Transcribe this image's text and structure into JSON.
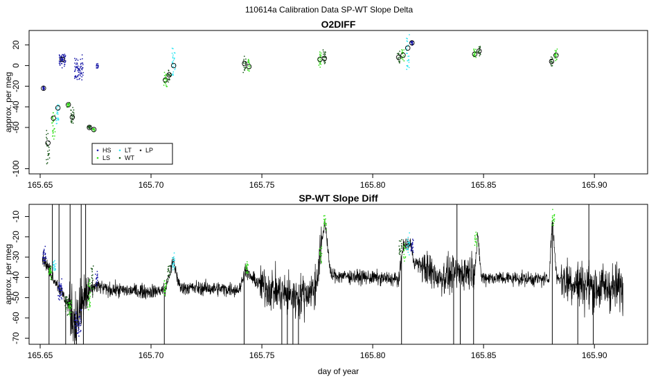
{
  "title": "110614a   Calibration Data SP-WT Slope Delta",
  "colors": {
    "HS": "#1a1aa8",
    "LS": "#39e01f",
    "LT": "#33e6f2",
    "WT": "#1e5a1e",
    "LP": "#2d2d2d",
    "trace": "#000000",
    "frame": "#000000"
  },
  "chart_data": [
    {
      "type": "scatter",
      "title": "O2DIFF",
      "xlabel": "",
      "ylabel": "approx. per meg",
      "xlim": [
        165.645,
        165.924
      ],
      "ylim": [
        -105,
        34
      ],
      "xticks": [
        165.65,
        165.7,
        165.75,
        165.8,
        165.85,
        165.9
      ],
      "xtick_labels": [
        "165.65",
        "165.70",
        "165.75",
        "165.80",
        "165.85",
        "165.90"
      ],
      "yticks": [
        -100,
        -60,
        -40,
        -20,
        0,
        20
      ],
      "ytick_labels": [
        "-100",
        "-60",
        "-40",
        "-20",
        "0",
        "20"
      ],
      "legend": {
        "position": "bottom-left",
        "entries": [
          {
            "label": "HS",
            "color": "HS"
          },
          {
            "label": "LT",
            "color": "LT"
          },
          {
            "label": "LP",
            "color": "LP"
          },
          {
            "label": "LS",
            "color": "LS"
          },
          {
            "label": "WT",
            "color": "WT"
          }
        ]
      },
      "clusters": [
        {
          "series": "HS",
          "x": 165.6515,
          "x_spread": 0.0008,
          "y_from": -22,
          "y_to": -22,
          "y_noise": 2,
          "n": 25
        },
        {
          "series": "WT",
          "x": 165.6535,
          "x_spread": 0.0015,
          "y_from": -95,
          "y_to": -65,
          "y_noise": 5,
          "n": 25
        },
        {
          "series": "LS",
          "x": 165.656,
          "x_spread": 0.0015,
          "y_from": -70,
          "y_to": -45,
          "y_noise": 5,
          "n": 25
        },
        {
          "series": "LT",
          "x": 165.658,
          "x_spread": 0.0015,
          "y_from": -55,
          "y_to": -38,
          "y_noise": 4,
          "n": 22
        },
        {
          "series": "HS",
          "x": 165.66,
          "x_spread": 0.003,
          "y_from": 8,
          "y_to": 2,
          "y_noise": 6,
          "n": 60
        },
        {
          "series": "LS",
          "x": 165.6627,
          "x_spread": 0.0012,
          "y_from": -38,
          "y_to": -38,
          "y_noise": 3,
          "n": 18
        },
        {
          "series": "WT",
          "x": 165.6645,
          "x_spread": 0.0015,
          "y_from": -42,
          "y_to": -56,
          "y_noise": 4,
          "n": 22
        },
        {
          "series": "HS",
          "x": 165.6675,
          "x_spread": 0.004,
          "y_from": 4,
          "y_to": -12,
          "y_noise": 8,
          "n": 70
        },
        {
          "series": "WT",
          "x": 165.6722,
          "x_spread": 0.0015,
          "y_from": -60,
          "y_to": -60,
          "y_noise": 3,
          "n": 20
        },
        {
          "series": "LS",
          "x": 165.6742,
          "x_spread": 0.0012,
          "y_from": -62,
          "y_to": -62,
          "y_noise": 3,
          "n": 16
        },
        {
          "series": "HS",
          "x": 165.6757,
          "x_spread": 0.001,
          "y_from": 0,
          "y_to": 0,
          "y_noise": 4,
          "n": 16
        },
        {
          "series": "LS",
          "x": 165.7065,
          "x_spread": 0.0015,
          "y_from": -20,
          "y_to": -8,
          "y_noise": 4,
          "n": 22
        },
        {
          "series": "WT",
          "x": 165.7082,
          "x_spread": 0.0012,
          "y_from": -15,
          "y_to": -5,
          "y_noise": 4,
          "n": 20
        },
        {
          "series": "LT",
          "x": 165.7102,
          "x_spread": 0.0015,
          "y_from": -10,
          "y_to": 15,
          "y_noise": 5,
          "n": 25
        },
        {
          "series": "WT",
          "x": 165.7422,
          "x_spread": 0.0012,
          "y_from": -5,
          "y_to": 8,
          "y_noise": 3,
          "n": 20
        },
        {
          "series": "LS",
          "x": 165.7442,
          "x_spread": 0.0012,
          "y_from": -5,
          "y_to": 5,
          "y_noise": 3,
          "n": 18
        },
        {
          "series": "LS",
          "x": 165.7762,
          "x_spread": 0.0012,
          "y_from": 0,
          "y_to": 12,
          "y_noise": 3,
          "n": 20
        },
        {
          "series": "WT",
          "x": 165.7782,
          "x_spread": 0.0012,
          "y_from": 2,
          "y_to": 14,
          "y_noise": 3,
          "n": 20
        },
        {
          "series": "WT",
          "x": 165.8117,
          "x_spread": 0.0012,
          "y_from": 2,
          "y_to": 14,
          "y_noise": 3,
          "n": 18
        },
        {
          "series": "LS",
          "x": 165.8137,
          "x_spread": 0.0012,
          "y_from": 5,
          "y_to": 16,
          "y_noise": 3,
          "n": 18
        },
        {
          "series": "LT",
          "x": 165.8158,
          "x_spread": 0.0015,
          "y_from": -5,
          "y_to": 28,
          "y_noise": 4,
          "n": 25
        },
        {
          "series": "HS",
          "x": 165.8177,
          "x_spread": 0.001,
          "y_from": 20,
          "y_to": 23,
          "y_noise": 2,
          "n": 18
        },
        {
          "series": "LS",
          "x": 165.846,
          "x_spread": 0.0012,
          "y_from": 8,
          "y_to": 16,
          "y_noise": 3,
          "n": 18
        },
        {
          "series": "WT",
          "x": 165.848,
          "x_spread": 0.0012,
          "y_from": 10,
          "y_to": 18,
          "y_noise": 3,
          "n": 18
        },
        {
          "series": "WT",
          "x": 165.8807,
          "x_spread": 0.0012,
          "y_from": 0,
          "y_to": 8,
          "y_noise": 3,
          "n": 18
        },
        {
          "series": "LS",
          "x": 165.8827,
          "x_spread": 0.0012,
          "y_from": 6,
          "y_to": 16,
          "y_noise": 3,
          "n": 18
        }
      ],
      "circle_markers": [
        {
          "x": 165.6515,
          "y": -22
        },
        {
          "x": 165.6535,
          "y": -75
        },
        {
          "x": 165.656,
          "y": -51
        },
        {
          "x": 165.658,
          "y": -41
        },
        {
          "x": 165.66,
          "y": 6
        },
        {
          "x": 165.6627,
          "y": -38
        },
        {
          "x": 165.6645,
          "y": -50
        },
        {
          "x": 165.6722,
          "y": -60
        },
        {
          "x": 165.6742,
          "y": -62
        },
        {
          "x": 165.7065,
          "y": -14
        },
        {
          "x": 165.7082,
          "y": -9
        },
        {
          "x": 165.7102,
          "y": 0
        },
        {
          "x": 165.7422,
          "y": 2
        },
        {
          "x": 165.7442,
          "y": -1
        },
        {
          "x": 165.7762,
          "y": 6
        },
        {
          "x": 165.7782,
          "y": 7
        },
        {
          "x": 165.8117,
          "y": 8
        },
        {
          "x": 165.8137,
          "y": 10
        },
        {
          "x": 165.8158,
          "y": 17
        },
        {
          "x": 165.8177,
          "y": 22
        },
        {
          "x": 165.846,
          "y": 11
        },
        {
          "x": 165.848,
          "y": 14
        },
        {
          "x": 165.8807,
          "y": 4
        },
        {
          "x": 165.8827,
          "y": 10
        }
      ]
    },
    {
      "type": "line",
      "title": "SP-WT Slope Diff",
      "xlabel": "day of year",
      "ylabel": "approx. per meg",
      "xlim": [
        165.645,
        165.924
      ],
      "ylim": [
        -73,
        -4
      ],
      "xticks": [
        165.65,
        165.7,
        165.75,
        165.8,
        165.85,
        165.9
      ],
      "xtick_labels": [
        "165.65",
        "165.70",
        "165.75",
        "165.80",
        "165.85",
        "165.90"
      ],
      "yticks": [
        -70,
        -60,
        -50,
        -40,
        -30,
        -20,
        -10
      ],
      "ytick_labels": [
        "-70",
        "-60",
        "-50",
        "-40",
        "-30",
        "-20",
        "-10"
      ],
      "trace": {
        "x_start": 165.651,
        "x_end": 165.913,
        "samples": 2600,
        "levels": [
          [
            165.651,
            -30
          ],
          [
            165.66,
            -48
          ],
          [
            165.6665,
            -62
          ],
          [
            165.67,
            -50
          ],
          [
            165.675,
            -44
          ],
          [
            165.68,
            -46
          ],
          [
            165.7,
            -47
          ],
          [
            165.7065,
            -46
          ],
          [
            165.71,
            -32
          ],
          [
            165.713,
            -45
          ],
          [
            165.74,
            -46
          ],
          [
            165.7425,
            -36
          ],
          [
            165.745,
            -40
          ],
          [
            165.75,
            -44
          ],
          [
            165.765,
            -50
          ],
          [
            165.774,
            -46
          ],
          [
            165.7785,
            -12
          ],
          [
            165.781,
            -39
          ],
          [
            165.812,
            -41
          ],
          [
            165.8135,
            -25
          ],
          [
            165.817,
            -23
          ],
          [
            165.8185,
            -32
          ],
          [
            165.83,
            -40
          ],
          [
            165.846,
            -36
          ],
          [
            165.8475,
            -20
          ],
          [
            165.849,
            -40
          ],
          [
            165.8795,
            -41
          ],
          [
            165.881,
            -12
          ],
          [
            165.883,
            -40
          ],
          [
            165.9,
            -45
          ],
          [
            165.913,
            -45
          ]
        ],
        "noisy_ranges": [
          [
            165.663,
            165.672,
            10
          ],
          [
            165.749,
            165.777,
            7
          ],
          [
            165.822,
            165.846,
            6
          ],
          [
            165.885,
            165.913,
            8
          ]
        ],
        "spikes": [
          [
            165.654,
            -73
          ],
          [
            165.6555,
            -4
          ],
          [
            165.6585,
            -4
          ],
          [
            165.6615,
            -73
          ],
          [
            165.6635,
            -4
          ],
          [
            165.6655,
            -73
          ],
          [
            165.6685,
            -4
          ],
          [
            165.6695,
            -73
          ],
          [
            165.6705,
            -4
          ],
          [
            165.706,
            -73
          ],
          [
            165.742,
            -73
          ],
          [
            165.759,
            -73
          ],
          [
            165.7615,
            -73
          ],
          [
            165.764,
            -73
          ],
          [
            165.7665,
            -73
          ],
          [
            165.813,
            -73
          ],
          [
            165.8365,
            -73
          ],
          [
            165.838,
            -4
          ],
          [
            165.8395,
            -73
          ],
          [
            165.8455,
            -73
          ],
          [
            165.881,
            -73
          ],
          [
            165.8925,
            -73
          ],
          [
            165.8975,
            -4
          ],
          [
            165.8995,
            -73
          ]
        ]
      },
      "overlay_clusters": [
        {
          "series": "HS",
          "x": 165.652,
          "x_spread": 0.0015,
          "y_from": -26,
          "y_to": -32,
          "y_noise": 3,
          "n": 25
        },
        {
          "series": "LS",
          "x": 165.6545,
          "x_spread": 0.0012,
          "y_from": -35,
          "y_to": -40,
          "y_noise": 3,
          "n": 20
        },
        {
          "series": "LT",
          "x": 165.6565,
          "x_spread": 0.0012,
          "y_from": -32,
          "y_to": -36,
          "y_noise": 3,
          "n": 20
        },
        {
          "series": "HS",
          "x": 165.659,
          "x_spread": 0.002,
          "y_from": -42,
          "y_to": -50,
          "y_noise": 3,
          "n": 35
        },
        {
          "series": "WT",
          "x": 165.662,
          "x_spread": 0.0015,
          "y_from": -50,
          "y_to": -56,
          "y_noise": 3,
          "n": 25
        },
        {
          "series": "LS",
          "x": 165.6635,
          "x_spread": 0.0012,
          "y_from": -52,
          "y_to": -58,
          "y_noise": 3,
          "n": 20
        },
        {
          "series": "HS",
          "x": 165.667,
          "x_spread": 0.003,
          "y_from": -58,
          "y_to": -68,
          "y_noise": 4,
          "n": 40
        },
        {
          "series": "LS",
          "x": 165.672,
          "x_spread": 0.0012,
          "y_from": -42,
          "y_to": -56,
          "y_noise": 4,
          "n": 25
        },
        {
          "series": "WT",
          "x": 165.6735,
          "x_spread": 0.001,
          "y_from": -35,
          "y_to": -48,
          "y_noise": 3,
          "n": 18
        },
        {
          "series": "HS",
          "x": 165.6755,
          "x_spread": 0.0012,
          "y_from": -38,
          "y_to": -44,
          "y_noise": 3,
          "n": 18
        },
        {
          "series": "LS",
          "x": 165.7065,
          "x_spread": 0.0012,
          "y_from": -42,
          "y_to": -48,
          "y_noise": 3,
          "n": 18
        },
        {
          "series": "WT",
          "x": 165.708,
          "x_spread": 0.001,
          "y_from": -34,
          "y_to": -40,
          "y_noise": 3,
          "n": 16
        },
        {
          "series": "LT",
          "x": 165.7102,
          "x_spread": 0.0012,
          "y_from": -30,
          "y_to": -36,
          "y_noise": 3,
          "n": 18
        },
        {
          "series": "LS",
          "x": 165.7432,
          "x_spread": 0.0012,
          "y_from": -33,
          "y_to": -38,
          "y_noise": 2,
          "n": 16
        },
        {
          "series": "LS",
          "x": 165.7765,
          "x_spread": 0.0012,
          "y_from": -25,
          "y_to": -32,
          "y_noise": 3,
          "n": 16
        },
        {
          "series": "LS",
          "x": 165.7785,
          "x_spread": 0.0012,
          "y_from": -10,
          "y_to": -16,
          "y_noise": 3,
          "n": 16
        },
        {
          "series": "WT",
          "x": 165.8125,
          "x_spread": 0.0012,
          "y_from": -22,
          "y_to": -28,
          "y_noise": 3,
          "n": 16
        },
        {
          "series": "LS",
          "x": 165.8142,
          "x_spread": 0.0012,
          "y_from": -24,
          "y_to": -30,
          "y_noise": 3,
          "n": 16
        },
        {
          "series": "LT",
          "x": 165.816,
          "x_spread": 0.0015,
          "y_from": -20,
          "y_to": -27,
          "y_noise": 3,
          "n": 20
        },
        {
          "series": "HS",
          "x": 165.8178,
          "x_spread": 0.001,
          "y_from": -22,
          "y_to": -27,
          "y_noise": 3,
          "n": 16
        },
        {
          "series": "LS",
          "x": 165.8465,
          "x_spread": 0.0012,
          "y_from": -19,
          "y_to": -24,
          "y_noise": 3,
          "n": 16
        },
        {
          "series": "LS",
          "x": 165.8815,
          "x_spread": 0.0012,
          "y_from": -8,
          "y_to": -14,
          "y_noise": 3,
          "n": 16
        }
      ]
    }
  ]
}
